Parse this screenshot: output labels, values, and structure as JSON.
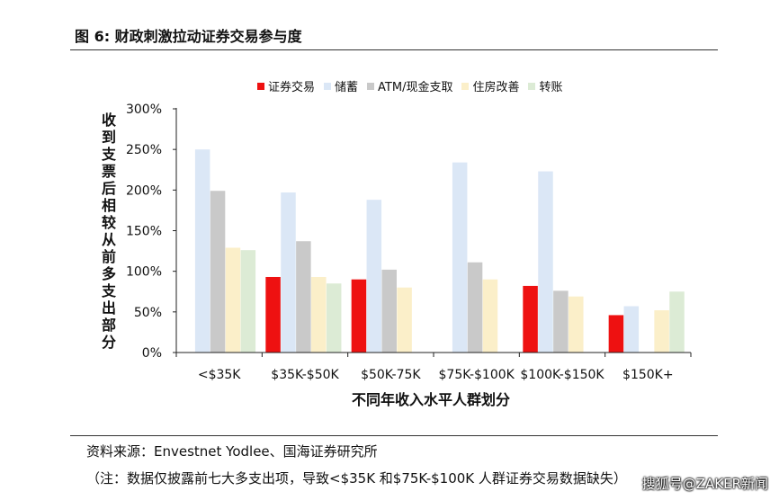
{
  "header": "图 6:  财政刺激拉动证券交易参与度",
  "chart_data": {
    "type": "bar",
    "ylabel": "收到支票后相较从前多支出部分",
    "xlabel": "不同年收入水平人群划分",
    "categories": [
      "<$35K",
      "$35K-$50K",
      "$50K-75K",
      "$75K-$100K",
      "$100K-$150K",
      "$150K+"
    ],
    "yticks": [
      "0%",
      "50%",
      "100%",
      "150%",
      "200%",
      "250%",
      "300%"
    ],
    "ylim": [
      0,
      300
    ],
    "legend_position": "top",
    "grid": false,
    "series": [
      {
        "name": "证券交易",
        "color": "#ee1111",
        "values": [
          null,
          93,
          90,
          null,
          82,
          46
        ]
      },
      {
        "name": "储蓄",
        "color": "#dbe7f6",
        "values": [
          250,
          197,
          188,
          234,
          223,
          57
        ]
      },
      {
        "name": "ATM/现金支取",
        "color": "#c9c9c9",
        "values": [
          199,
          137,
          102,
          111,
          76,
          null
        ]
      },
      {
        "name": "住房改善",
        "color": "#fbefc9",
        "values": [
          129,
          93,
          80,
          90,
          69,
          52
        ]
      },
      {
        "name": "转账",
        "color": "#dcebd5",
        "values": [
          126,
          85,
          null,
          null,
          null,
          75
        ]
      }
    ]
  },
  "footer": {
    "source": "资料来源：Envestnet Yodlee、国海证券研究所",
    "note": "（注：数据仅披露前七大多支出项，导致<$35K 和$75K-$100K 人群证券交易数据缺失）"
  },
  "watermark": "搜狐号@ZAKER新闻"
}
